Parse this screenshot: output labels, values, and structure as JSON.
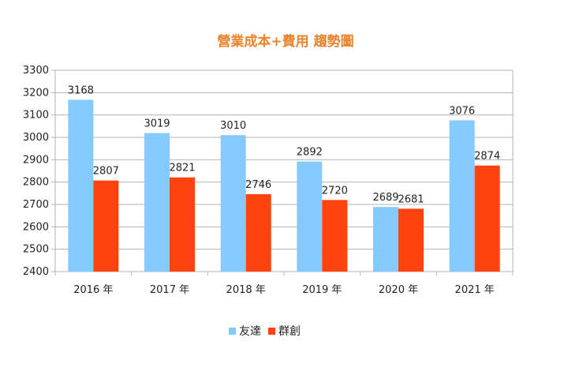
{
  "chart_data": {
    "type": "bar",
    "title": "營業成本+費用 趨勢圖",
    "categories": [
      "2016 年",
      "2017 年",
      "2018 年",
      "2019 年",
      "2020 年",
      "2021 年"
    ],
    "series": [
      {
        "name": "友達",
        "values": [
          3168,
          3019,
          3010,
          2892,
          2689,
          3076
        ],
        "color": "#83CAFF"
      },
      {
        "name": "群創",
        "values": [
          2807,
          2821,
          2746,
          2720,
          2681,
          2874
        ],
        "color": "#FF420E"
      }
    ],
    "ylim": [
      2400,
      3300
    ],
    "yticks": [
      2400,
      2500,
      2600,
      2700,
      2800,
      2900,
      3000,
      3100,
      3200,
      3300
    ],
    "xlabel": "",
    "ylabel": "",
    "grid": true,
    "legend_position": "bottom",
    "colors": {
      "title": "#E8842E",
      "grid": "#B3B3B3",
      "axis": "#B3B3B3"
    }
  }
}
